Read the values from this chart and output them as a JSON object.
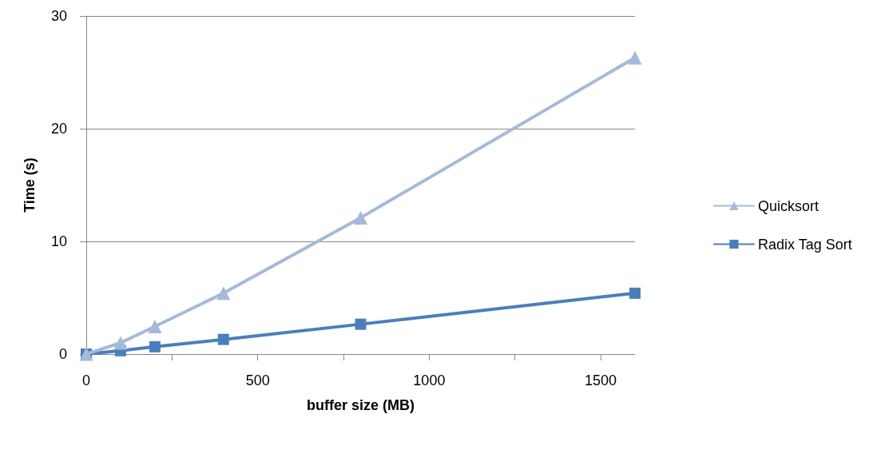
{
  "chart_data": {
    "type": "line",
    "xlabel": "buffer size (MB)",
    "ylabel": "Time (s)",
    "x": [
      0,
      100,
      200,
      400,
      800,
      1600
    ],
    "series": [
      {
        "name": "Quicksort",
        "color": "#a5b9d9",
        "marker": "triangle",
        "values": [
          0,
          1.0,
          2.45,
          5.4,
          12.1,
          26.3
        ]
      },
      {
        "name": "Radix Tag Sort",
        "color": "#4a7ebb",
        "marker": "square",
        "values": [
          0,
          0.3,
          0.65,
          1.3,
          2.65,
          5.4
        ]
      }
    ],
    "xlim": [
      0,
      1600
    ],
    "xticks": [
      0,
      {
        "value": 250,
        "label": null
      },
      500,
      {
        "value": 750,
        "label": null
      },
      1000,
      {
        "value": 1250,
        "label": null
      },
      1500
    ],
    "ylim": [
      0,
      30
    ],
    "yticks": [
      0,
      10,
      20,
      30
    ],
    "grid": "y",
    "legend": "right",
    "line_style": "solid"
  }
}
